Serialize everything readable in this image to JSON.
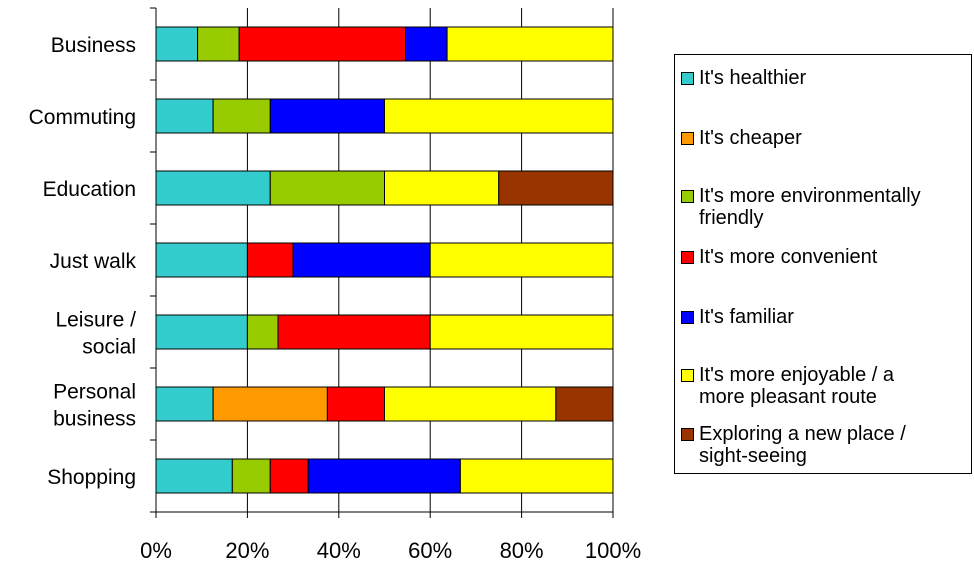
{
  "chart_data": {
    "type": "bar",
    "orientation": "horizontal",
    "stacked": "percent",
    "categories": [
      "Business",
      "Commuting",
      "Education",
      "Just walk",
      "Leisure /\nsocial",
      "Personal\nbusiness",
      "Shopping"
    ],
    "series": [
      {
        "name": "It's healthier",
        "color": "#33cccc",
        "values": [
          9.1,
          12.5,
          25,
          20,
          20,
          12.5,
          16.7
        ]
      },
      {
        "name": "It's cheaper",
        "color": "#ff9900",
        "values": [
          0,
          0,
          0,
          0,
          0,
          25,
          0
        ]
      },
      {
        "name": "It's more environmentally\nfriendly",
        "color": "#99cc00",
        "values": [
          9.1,
          12.5,
          25,
          0,
          6.7,
          0,
          8.3
        ]
      },
      {
        "name": "It's more convenient",
        "color": "#ff0000",
        "values": [
          36.4,
          0,
          0,
          10,
          33.3,
          12.5,
          8.3
        ]
      },
      {
        "name": "It's familiar",
        "color": "#0000ff",
        "values": [
          9.1,
          25,
          0,
          30,
          0,
          0,
          33.3
        ]
      },
      {
        "name": "It's more enjoyable / a\nmore pleasant route",
        "color": "#ffff00",
        "values": [
          36.3,
          50,
          25,
          40,
          40,
          37.5,
          33.4
        ]
      },
      {
        "name": "Exploring a new place /\nsight-seeing",
        "color": "#993300",
        "values": [
          0,
          0,
          25,
          0,
          0,
          12.5,
          0
        ]
      }
    ],
    "x_ticks": [
      "0%",
      "20%",
      "40%",
      "60%",
      "80%",
      "100%"
    ],
    "xlim": [
      0,
      100
    ],
    "grid": "vertical",
    "legend": "right"
  }
}
